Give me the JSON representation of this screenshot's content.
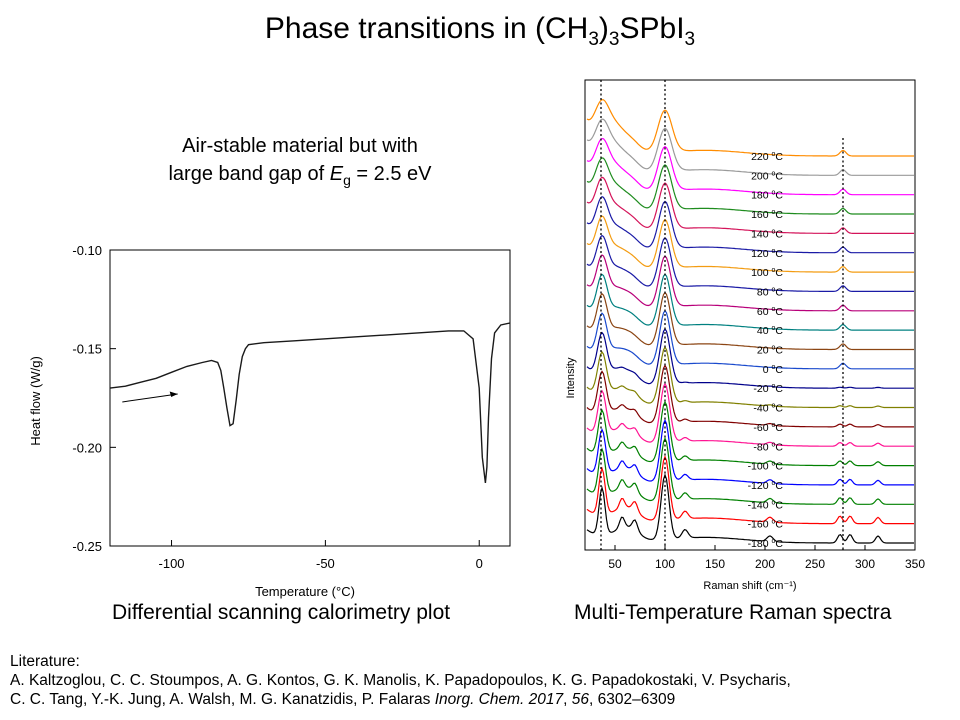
{
  "title": {
    "prefix": "Phase transitions in (CH",
    "sub1": "3",
    "mid": ")",
    "sub2": "3",
    "suffix": "SPbI",
    "sub3": "3"
  },
  "note": {
    "line1": "Air-stable  material but with",
    "line2_prefix": "large band gap of ",
    "symbol": "E",
    "symbol_sub": "g",
    "line2_suffix": " = 2.5 eV"
  },
  "captions": {
    "dsc": "Differential scanning calorimetry plot",
    "raman": "Multi-Temperature Raman spectra"
  },
  "literature": {
    "heading": "Literature:",
    "authors_line1": "A. Kaltzoglou, C. C. Stoumpos, A. G. Kontos, G. K. Manolis, K. Papadopoulos, K. G. Papadokostaki, V. Psycharis,",
    "authors_line2": "C. C. Tang, Y.-K. Jung, A. Walsh, M. G. Kanatzidis, P. Falaras ",
    "journal": "Inorg. Chem. 2017",
    "sep": ", ",
    "volume": "56",
    "pages": ", 6302–6309"
  },
  "chart_data": [
    {
      "type": "line",
      "xlabel": "Temperature (°C)",
      "ylabel": "Heat flow (W/g)",
      "xlim": [
        -120,
        10
      ],
      "ylim": [
        -0.25,
        -0.1
      ],
      "xticks": [
        -100,
        -50,
        0
      ],
      "yticks": [
        -0.1,
        -0.15,
        -0.2,
        -0.25
      ],
      "arrow": "heating direction, left to right",
      "series": [
        {
          "x": [
            -120,
            -115,
            -110,
            -105,
            -100,
            -95,
            -90,
            -87,
            -85,
            -84,
            -83,
            -82,
            -81,
            -80,
            -79,
            -78,
            -77,
            -76,
            -75,
            -70,
            -60,
            -50,
            -40,
            -30,
            -20,
            -10,
            -5,
            -2,
            0,
            1,
            2,
            2.5,
            3,
            4,
            5,
            7,
            10
          ],
          "y": [
            -0.17,
            -0.169,
            -0.167,
            -0.165,
            -0.162,
            -0.159,
            -0.157,
            -0.156,
            -0.157,
            -0.161,
            -0.17,
            -0.18,
            -0.189,
            -0.188,
            -0.176,
            -0.163,
            -0.154,
            -0.15,
            -0.148,
            -0.147,
            -0.146,
            -0.145,
            -0.144,
            -0.143,
            -0.142,
            -0.141,
            -0.141,
            -0.145,
            -0.17,
            -0.205,
            -0.218,
            -0.21,
            -0.185,
            -0.155,
            -0.142,
            -0.138,
            -0.137
          ]
        }
      ]
    },
    {
      "type": "line",
      "xlabel": "Raman shift (cm⁻¹)",
      "ylabel": "Intensity",
      "xlim": [
        20,
        350
      ],
      "xticks": [
        50,
        100,
        150,
        200,
        250,
        300,
        350
      ],
      "temperatures": [
        "220",
        "200",
        "180",
        "160",
        "140",
        "120",
        "100",
        "80",
        "60",
        "40",
        "20",
        "0",
        "-20",
        "-40",
        "-60",
        "-80",
        "-100",
        "-120",
        "-140",
        "-160",
        "-180"
      ],
      "temperature_unit": "°C",
      "colors": [
        "#ff8c00",
        "#9a9a9a",
        "#ff00ff",
        "#1e8c1e",
        "#d4145a",
        "#1a1aa6",
        "#f39c12",
        "#1a1aa6",
        "#b8007a",
        "#008080",
        "#8b4513",
        "#1a4acd",
        "#00008b",
        "#808000",
        "#800000",
        "#ff1493",
        "#008000",
        "#0000ff",
        "#008000",
        "#ff0000",
        "#000000"
      ],
      "dotted_reference_lines_cm1": [
        36,
        100,
        278
      ]
    }
  ]
}
